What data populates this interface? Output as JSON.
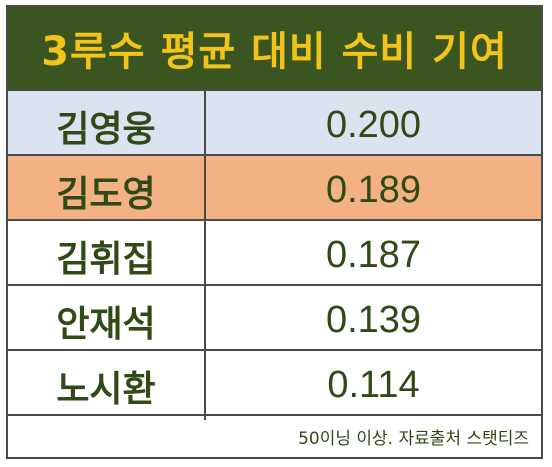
{
  "header": {
    "title": "3루수 평균 대비 수비 기여",
    "background": "#3b5521",
    "text_color": "#f2c318"
  },
  "rows": [
    {
      "name": "김영웅",
      "value": "0.200",
      "background": "#dbe3f1"
    },
    {
      "name": "김도영",
      "value": "0.189",
      "background": "#f4b183"
    },
    {
      "name": "김휘집",
      "value": "0.187",
      "background": "#ffffff"
    },
    {
      "name": "안재석",
      "value": "0.139",
      "background": "#ffffff"
    },
    {
      "name": "노시환",
      "value": "0.114",
      "background": "#ffffff"
    }
  ],
  "footer": {
    "note": "50이닝 이상. 자료출처 스탯티즈"
  }
}
